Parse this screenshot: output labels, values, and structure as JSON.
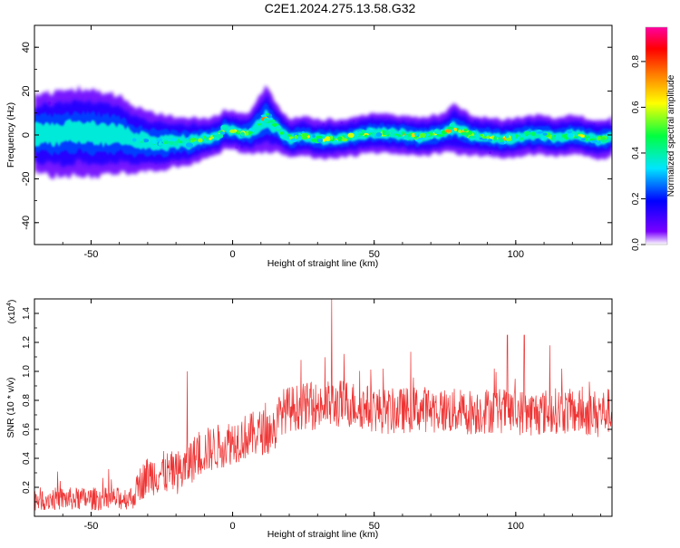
{
  "title": "C2E1.2024.275.13.58.G32",
  "colors": {
    "signal": "#ee3333",
    "axis": "#000000",
    "colormap": [
      "#ffffff",
      "#7a00ff",
      "#0000ff",
      "#00e5ff",
      "#00ff40",
      "#ffff00",
      "#ff7f00",
      "#ff0000",
      "#ff00a0"
    ]
  },
  "chart_data": [
    {
      "type": "heatmap",
      "title": "C2E1.2024.275.13.58.G32",
      "xlabel": "Height of straight line (km)",
      "ylabel": "Frequency (Hz)",
      "xlim": [
        -70,
        134
      ],
      "ylim": [
        -50,
        50
      ],
      "xticks": [
        -50,
        0,
        50,
        100
      ],
      "xtick_labels": [
        "-50",
        "0",
        "50",
        "100"
      ],
      "yticks": [
        -40,
        -20,
        0,
        20,
        40
      ],
      "ytick_labels": [
        "-40",
        "-20",
        "0",
        "20",
        "40"
      ],
      "colorbar": {
        "label": "Normalized spectral amplitude",
        "range": [
          0.0,
          0.95
        ],
        "ticks": [
          0.0,
          0.2,
          0.4,
          0.6,
          0.8
        ],
        "tick_labels": [
          "0.0",
          "0.2",
          "0.4",
          "0.6",
          "0.8"
        ]
      },
      "ridge": {
        "x": [
          -70,
          -60,
          -50,
          -40,
          -35,
          -30,
          -25,
          -20,
          -15,
          -10,
          -5,
          -3,
          0,
          5,
          8,
          10,
          12,
          15,
          20,
          25,
          30,
          35,
          40,
          45,
          50,
          55,
          60,
          65,
          70,
          75,
          78,
          80,
          85,
          90,
          95,
          100,
          105,
          110,
          115,
          120,
          125,
          130,
          134
        ],
        "frequency": [
          0,
          1,
          1,
          0,
          -2,
          -3,
          -4,
          -3,
          -3,
          -2,
          0,
          3,
          2,
          0,
          3,
          6,
          8,
          4,
          -2,
          0,
          -2,
          -2,
          -1,
          0,
          1,
          1,
          0,
          -1,
          0,
          1,
          3,
          2,
          0,
          -1,
          -2,
          -1,
          0,
          0,
          -1,
          0,
          -1,
          -2,
          -1
        ],
        "peak_amplitude": [
          0.25,
          0.3,
          0.3,
          0.35,
          0.45,
          0.5,
          0.55,
          0.6,
          0.65,
          0.7,
          0.75,
          0.8,
          0.75,
          0.7,
          0.75,
          0.9,
          0.95,
          0.8,
          0.7,
          0.75,
          0.75,
          0.75,
          0.75,
          0.8,
          0.8,
          0.8,
          0.8,
          0.85,
          0.85,
          0.85,
          0.9,
          0.85,
          0.85,
          0.8,
          0.8,
          0.8,
          0.8,
          0.8,
          0.8,
          0.8,
          0.75,
          0.75,
          0.7
        ],
        "spread": [
          8,
          9,
          9,
          8,
          7,
          6,
          6,
          5,
          5,
          4,
          4,
          4,
          4,
          4,
          5,
          6,
          7,
          5,
          4,
          4,
          4,
          4,
          4,
          4,
          4,
          4,
          4,
          4,
          4,
          4,
          5,
          5,
          4,
          4,
          4,
          4,
          4,
          4,
          4,
          4,
          4,
          4,
          4
        ]
      }
    },
    {
      "type": "line",
      "xlabel": "Height of straight line (km)",
      "ylabel": "SNR (10 * v/v)",
      "y_multiplier": "(x10",
      "y_multiplier_exp": "4",
      "y_multiplier_close": ")",
      "xlim": [
        -70,
        134
      ],
      "ylim": [
        0,
        1.5
      ],
      "xticks": [
        -50,
        0,
        50,
        100
      ],
      "xtick_labels": [
        "-50",
        "0",
        "50",
        "100"
      ],
      "yticks": [
        0.2,
        0.4,
        0.6,
        0.8,
        1.0,
        1.2,
        1.4
      ],
      "ytick_labels": [
        "0.2",
        "0.4",
        "0.6",
        "0.8",
        "1.0",
        "1.2",
        "1.4"
      ],
      "envelope": {
        "x": [
          -70,
          -60,
          -50,
          -40,
          -35,
          -33,
          -30,
          -25,
          -20,
          -17,
          -15,
          -10,
          -5,
          0,
          5,
          10,
          15,
          17,
          20,
          25,
          30,
          35,
          40,
          45,
          50,
          55,
          60,
          65,
          70,
          75,
          80,
          85,
          90,
          95,
          100,
          105,
          110,
          115,
          120,
          125,
          130,
          134
        ],
        "mean": [
          0.12,
          0.12,
          0.12,
          0.12,
          0.13,
          0.22,
          0.28,
          0.3,
          0.3,
          0.32,
          0.38,
          0.45,
          0.48,
          0.52,
          0.55,
          0.58,
          0.6,
          0.72,
          0.74,
          0.76,
          0.76,
          0.77,
          0.78,
          0.76,
          0.74,
          0.72,
          0.73,
          0.74,
          0.74,
          0.73,
          0.72,
          0.72,
          0.73,
          0.73,
          0.72,
          0.71,
          0.72,
          0.73,
          0.72,
          0.71,
          0.72,
          0.73
        ],
        "noise": [
          0.08,
          0.08,
          0.08,
          0.08,
          0.08,
          0.12,
          0.14,
          0.15,
          0.15,
          0.16,
          0.16,
          0.16,
          0.16,
          0.16,
          0.16,
          0.16,
          0.16,
          0.16,
          0.16,
          0.16,
          0.17,
          0.17,
          0.17,
          0.16,
          0.16,
          0.16,
          0.16,
          0.16,
          0.16,
          0.16,
          0.16,
          0.16,
          0.16,
          0.16,
          0.16,
          0.16,
          0.16,
          0.16,
          0.16,
          0.16,
          0.16,
          0.16
        ]
      },
      "peaks": [
        {
          "x": -16,
          "y": 1.0
        },
        {
          "x": 35,
          "y": 1.5
        },
        {
          "x": 97,
          "y": 1.25
        },
        {
          "x": 103,
          "y": 1.25
        },
        {
          "x": 112,
          "y": 1.18
        }
      ]
    }
  ]
}
